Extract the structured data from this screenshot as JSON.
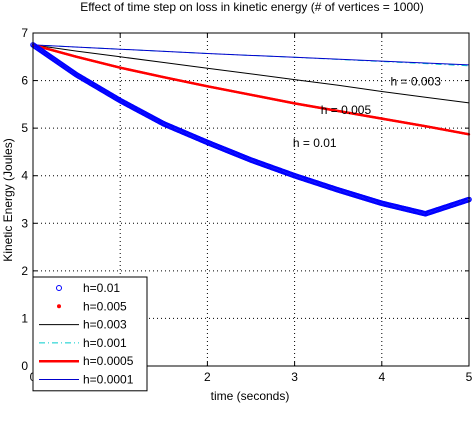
{
  "chart_data": {
    "type": "line",
    "title": "Effect of time step on loss in kinetic energy (# of vertices = 1000)",
    "xlabel": "time (seconds)",
    "ylabel": "Kinetic Energy (Joules)",
    "xlim": [
      0,
      5
    ],
    "ylim": [
      0,
      7
    ],
    "xticks": [
      "0",
      "1",
      "2",
      "3",
      "4",
      "5"
    ],
    "yticks": [
      "0",
      "1",
      "2",
      "3",
      "4",
      "5",
      "6",
      "7"
    ],
    "grid": true,
    "legend_position": "bottom-left",
    "series": [
      {
        "name": "h=0.01",
        "color": "#0000ff",
        "style": "circle-markers",
        "x": [
          0,
          0.5,
          1,
          1.5,
          2,
          2.5,
          3,
          3.5,
          4,
          4.5,
          5
        ],
        "y": [
          6.75,
          6.12,
          5.58,
          5.09,
          4.7,
          4.33,
          4.0,
          3.7,
          3.42,
          3.2,
          3.5
        ]
      },
      {
        "name": "h=0.005",
        "color": "#ff0000",
        "style": "dot-markers",
        "x": [
          0,
          0.5,
          1,
          1.5,
          2,
          2.5,
          3,
          3.5,
          4,
          4.5,
          5
        ],
        "y": [
          6.75,
          6.5,
          6.27,
          6.07,
          5.88,
          5.7,
          5.52,
          5.36,
          5.2,
          5.04,
          4.87
        ]
      },
      {
        "name": "h=0.003",
        "color": "#000000",
        "style": "solid",
        "x": [
          0,
          0.5,
          1,
          1.5,
          2,
          2.5,
          3,
          3.5,
          4,
          4.5,
          5
        ],
        "y": [
          6.75,
          6.62,
          6.5,
          6.38,
          6.26,
          6.14,
          6.02,
          5.9,
          5.77,
          5.65,
          5.53
        ]
      },
      {
        "name": "h=0.001",
        "color": "#00cccc",
        "style": "dash-dot",
        "x": [
          0,
          1,
          2,
          3,
          4,
          5
        ],
        "y": [
          6.75,
          6.66,
          6.57,
          6.49,
          6.4,
          6.31
        ]
      },
      {
        "name": "h=0.0005",
        "color": "#ff0000",
        "style": "solid-thick",
        "x": [
          0,
          0.5,
          1,
          1.5,
          2,
          2.5,
          3,
          3.5,
          4,
          4.5,
          5
        ],
        "y": [
          6.75,
          6.5,
          6.27,
          6.07,
          5.88,
          5.7,
          5.52,
          5.36,
          5.2,
          5.04,
          4.87
        ]
      },
      {
        "name": "h=0.0001",
        "color": "#0000cc",
        "style": "solid",
        "x": [
          0,
          1,
          2,
          3,
          4,
          5
        ],
        "y": [
          6.75,
          6.66,
          6.57,
          6.49,
          6.41,
          6.33
        ]
      }
    ],
    "annotations": [
      {
        "text": "h = 0.003",
        "x": 4.1,
        "y": 5.9
      },
      {
        "text": "h = 0.005",
        "x": 3.3,
        "y": 5.3
      },
      {
        "text": "h = 0.01",
        "x": 2.98,
        "y": 4.6
      }
    ]
  }
}
